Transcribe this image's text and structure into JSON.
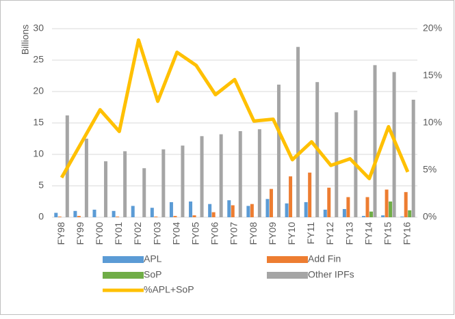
{
  "chart_data": {
    "type": "bar_line",
    "y_label": "Billions",
    "categories": [
      "FY98",
      "FY99",
      "FY00",
      "FY01",
      "FY02",
      "FY03",
      "FY04",
      "FY05",
      "FY06",
      "FY07",
      "FY08",
      "FY09",
      "FY10",
      "FY11",
      "FY12",
      "FY13",
      "FY14",
      "FY15",
      "FY16"
    ],
    "series": [
      {
        "name": "APL",
        "color": "#5b9bd5",
        "values": [
          0.7,
          1.0,
          1.2,
          1.0,
          1.8,
          1.5,
          2.4,
          2.5,
          2.1,
          2.7,
          1.8,
          2.9,
          2.2,
          2.4,
          1.2,
          1.3,
          0.2,
          0.3,
          0.1
        ]
      },
      {
        "name": "Add Fin",
        "color": "#ed7d31",
        "values": [
          0.1,
          0.2,
          0,
          0.1,
          0,
          0.1,
          0.2,
          0.3,
          0.8,
          1.9,
          2.1,
          4.5,
          6.5,
          7.1,
          4.7,
          3.2,
          3.2,
          4.4,
          4.0
        ]
      },
      {
        "name": "SoP",
        "color": "#70ad47",
        "values": [
          0,
          0,
          0,
          0,
          0,
          0,
          0,
          0,
          0,
          0,
          0,
          0,
          0,
          0,
          0,
          0,
          0.9,
          2.5,
          1.1
        ]
      },
      {
        "name": "Other IPFs",
        "color": "#a5a5a5",
        "values": [
          16.2,
          12.5,
          8.9,
          10.5,
          7.8,
          10.8,
          11.4,
          12.9,
          13.2,
          13.7,
          14.0,
          21.1,
          27.1,
          21.5,
          16.7,
          17.0,
          24.2,
          23.1,
          18.7
        ]
      },
      {
        "name": "%APL+SoP",
        "color": "#ffc000",
        "axis": "y2",
        "type": "line",
        "values": [
          4.2,
          7.8,
          11.4,
          9.1,
          18.8,
          12.3,
          17.5,
          16.1,
          13.0,
          14.6,
          10.2,
          10.4,
          6.1,
          8.0,
          5.5,
          6.2,
          4.1,
          9.6,
          4.8
        ]
      }
    ],
    "ylim": [
      0,
      30
    ],
    "yticks": [
      0,
      5,
      10,
      15,
      20,
      25,
      30
    ],
    "y2lim": [
      0,
      20
    ],
    "y2ticks": [
      {
        "value": 0,
        "label": "0%"
      },
      {
        "value": 5,
        "label": "5%"
      },
      {
        "value": 10,
        "label": "10%"
      },
      {
        "value": 15,
        "label": "15%"
      },
      {
        "value": 20,
        "label": "20%"
      }
    ],
    "grid": true
  }
}
